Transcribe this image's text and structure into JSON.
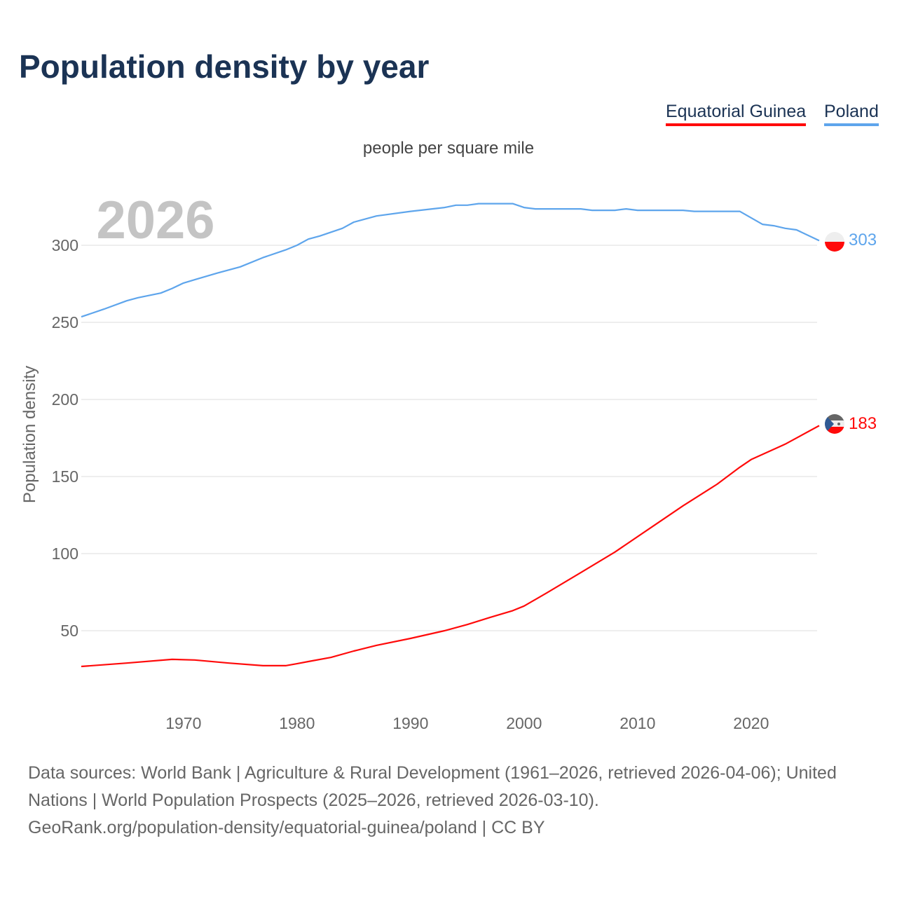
{
  "title": "Population density by year",
  "subtitle": "people per square mile",
  "year_label": "2026",
  "footer": {
    "sources": "Data sources: World Bank | Agriculture & Rural Development (1961–2026, retrieved 2026-04-06); United Nations | World Population Prospects (2025–2026, retrieved 2026-03-10).",
    "credit": "GeoRank.org/population-density/equatorial-guinea/poland | CC BY"
  },
  "chart_data": {
    "type": "line",
    "title": "Population density by year",
    "ylabel": "Population density",
    "xlabel": "",
    "xlim": [
      1961,
      2026
    ],
    "ylim": [
      0,
      340
    ],
    "x_ticks": [
      1970,
      1980,
      1990,
      2000,
      2010,
      2020
    ],
    "y_ticks": [
      50,
      100,
      150,
      200,
      250,
      300
    ],
    "grid": true,
    "legend": "top-right",
    "series": [
      {
        "name": "Equatorial Guinea",
        "color": "#ff0a0a",
        "end_label": "183",
        "flag": "equatorial-guinea-flag",
        "x": [
          1961,
          1965,
          1969,
          1971,
          1974,
          1977,
          1979,
          1980,
          1981,
          1983,
          1985,
          1987,
          1990,
          1993,
          1995,
          1997,
          1999,
          2000,
          2002,
          2005,
          2008,
          2011,
          2014,
          2017,
          2019,
          2020,
          2023,
          2026
        ],
        "y": [
          26.8,
          29,
          31.4,
          31,
          29,
          27.3,
          27.3,
          28.6,
          30,
          32.7,
          36.8,
          40.5,
          45,
          50,
          54,
          58.6,
          63,
          66,
          74.5,
          87.7,
          101,
          116,
          131,
          145,
          156,
          161,
          171,
          183
        ]
      },
      {
        "name": "Poland",
        "color": "#5ea5ec",
        "end_label": "303",
        "flag": "poland-flag",
        "x": [
          1961,
          1963,
          1965,
          1966,
          1968,
          1969,
          1970,
          1971,
          1973,
          1975,
          1977,
          1979,
          1980,
          1981,
          1982,
          1984,
          1985,
          1987,
          1990,
          1993,
          1994,
          1995,
          1996,
          1999,
          2000,
          2001,
          2005,
          2006,
          2008,
          2009,
          2010,
          2014,
          2015,
          2019,
          2021,
          2022,
          2023,
          2024,
          2026
        ],
        "y": [
          253.6,
          258.6,
          264,
          266,
          269,
          272,
          275.5,
          277.7,
          282,
          286,
          292,
          297,
          300,
          304,
          306,
          311,
          315,
          319,
          322,
          324.5,
          326,
          326,
          327,
          327,
          324.5,
          323.6,
          323.6,
          322.7,
          322.7,
          323.6,
          322.7,
          322.7,
          322,
          322,
          313.6,
          312.7,
          311,
          310,
          303
        ]
      }
    ]
  }
}
